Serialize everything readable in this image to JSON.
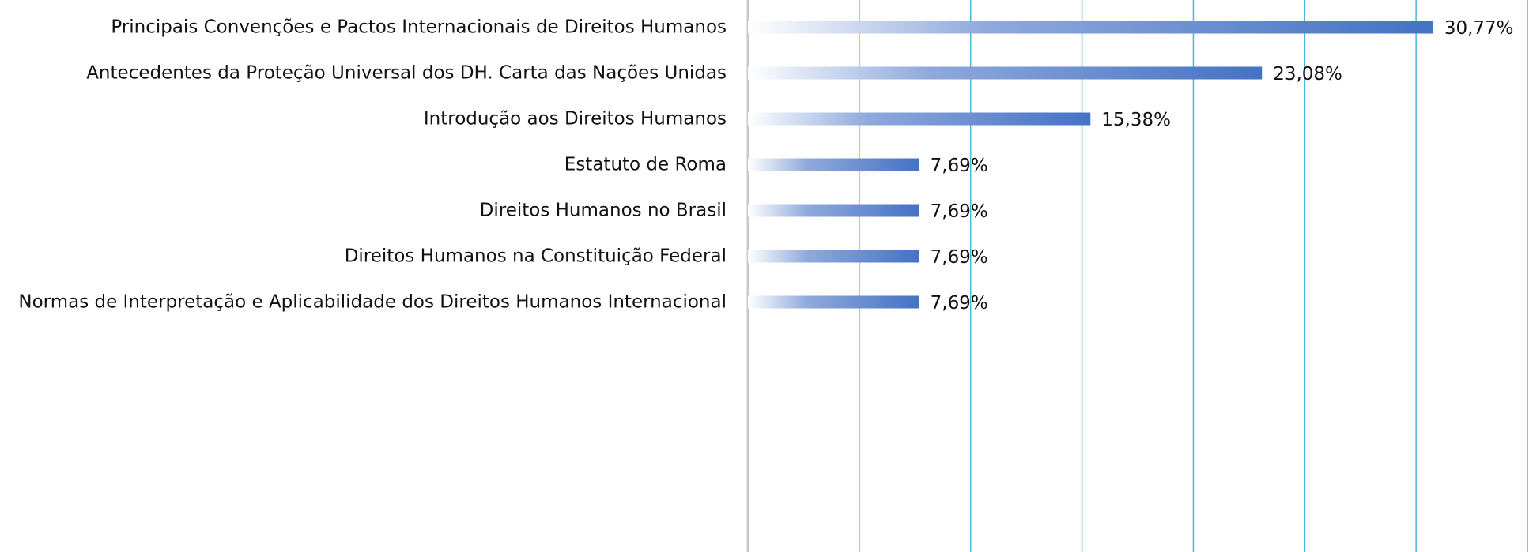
{
  "chart_data": {
    "type": "barh",
    "categories": [
      "Principais Convenções e Pactos Internacionais de Direitos Humanos",
      "Antecedentes da Proteção Universal dos DH. Carta das Nações Unidas",
      "Introdução aos Direitos Humanos",
      "Estatuto de Roma",
      "Direitos Humanos no Brasil",
      "Direitos Humanos na Constituição Federal",
      "Normas de Interpretação e Aplicabilidade dos Direitos Humanos Internacional"
    ],
    "values": [
      30.77,
      23.08,
      15.38,
      7.69,
      7.69,
      7.69,
      7.69
    ],
    "value_labels": [
      "30,77%",
      "23,08%",
      "15,38%",
      "7,69%",
      "7,69%",
      "7,69%",
      "7,69%"
    ],
    "color": "#4472c4",
    "xlim": [
      0,
      35
    ],
    "xticks": [
      0,
      5,
      10,
      15,
      20,
      25,
      30,
      35
    ],
    "grid": true
  }
}
